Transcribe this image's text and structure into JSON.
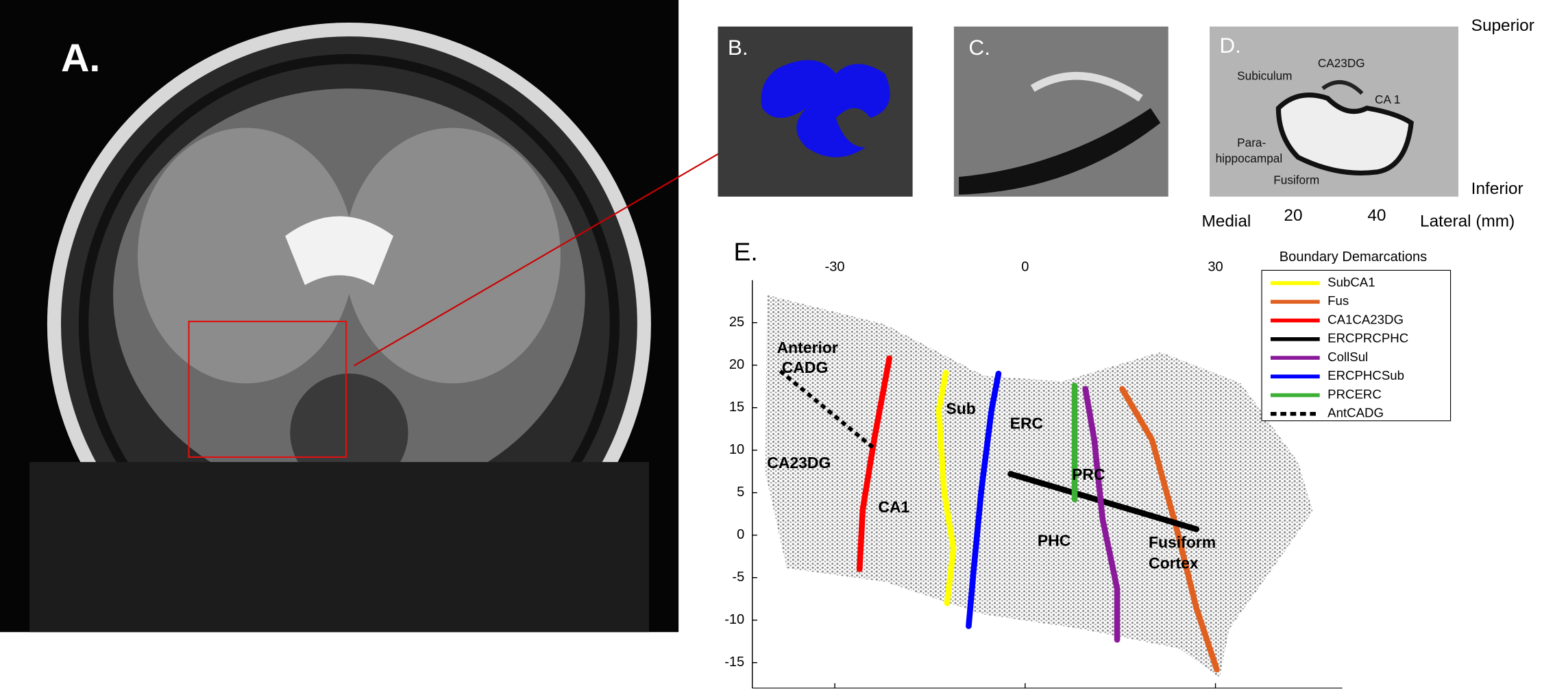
{
  "figure": {
    "panels": [
      "A.",
      "B.",
      "C.",
      "D.",
      "E."
    ],
    "panel_d_labels": [
      "CA23DG",
      "Subiculum",
      "CA 1",
      "Para-",
      "hippocampal",
      "Fusiform"
    ],
    "orientation": [
      "Superior",
      "Inferior",
      "Medial",
      "Lateral (mm)"
    ],
    "panel_d_ticks": [
      20,
      40
    ]
  },
  "chart_data": {
    "type": "line",
    "legend_title": "Boundary Demarcations",
    "legend": "upper right",
    "xlim": [
      -43,
      50
    ],
    "ylim": [
      -18,
      30
    ],
    "xticks": [
      -30,
      0,
      30
    ],
    "yticks": [
      -15,
      -10,
      -5,
      0,
      5,
      10,
      15,
      20,
      25
    ],
    "annotations": [
      "Anterior",
      "CADG",
      "CA23DG",
      "CA1",
      "Sub",
      "ERC",
      "PRC",
      "PHC",
      "Fusiform",
      "Cortex"
    ],
    "series": [
      {
        "name": "SubCA1",
        "color": "#ffff00",
        "x": [
          -12.5,
          -13.6,
          -12.8,
          -11.3,
          -12.3
        ],
        "values": [
          19.1,
          14.7,
          5.3,
          -1.6,
          -8.0
        ]
      },
      {
        "name": "Fus",
        "color": "#e06020",
        "x": [
          15.3,
          20,
          23.9,
          27,
          30.2
        ],
        "values": [
          17.2,
          11.2,
          0.7,
          -8.6,
          -15.8
        ]
      },
      {
        "name": "CA1CA23DG",
        "color": "#ff0000",
        "x": [
          -21.4,
          -23.8,
          -25.6,
          -26.1
        ],
        "values": [
          20.8,
          11.2,
          3.0,
          -4.0
        ]
      },
      {
        "name": "ERCPRCPHC",
        "color": "#000000",
        "x": [
          -2.3,
          27
        ],
        "values": [
          7.2,
          0.7
        ]
      },
      {
        "name": "CollSul",
        "color": "#8b1a9b",
        "x": [
          9.5,
          10.9,
          12.2,
          14.5,
          14.5
        ],
        "values": [
          17.2,
          11.2,
          1.9,
          -6.3,
          -12.3
        ]
      },
      {
        "name": "ERCPHCSub",
        "color": "#0000ff",
        "x": [
          -4.2,
          -5.3,
          -6.9,
          -8.1,
          -8.9
        ],
        "values": [
          19.0,
          14.7,
          5.3,
          -4.0,
          -10.7
        ]
      },
      {
        "name": "PRCERC",
        "color": "#3cb034",
        "x": [
          7.8,
          7.8
        ],
        "values": [
          17.6,
          4.2
        ]
      },
      {
        "name": "AntCADG",
        "color": "#000000",
        "dashed": true,
        "x": [
          -38.6,
          -23.8
        ],
        "values": [
          19.3,
          10.2
        ]
      }
    ]
  }
}
